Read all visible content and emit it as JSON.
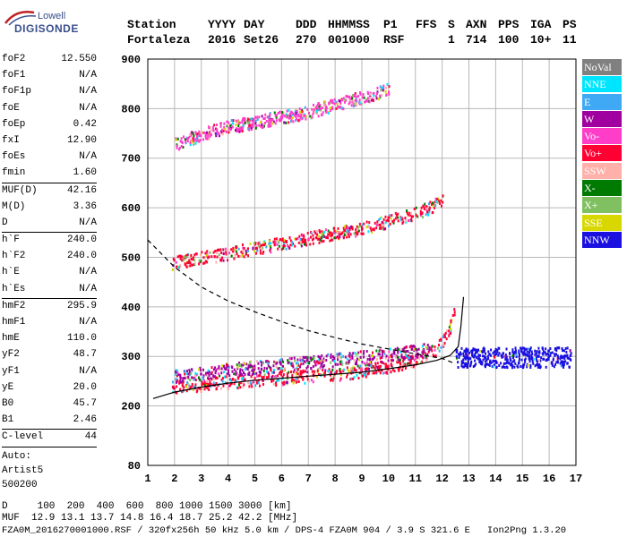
{
  "logo": {
    "line1": "Lowell",
    "line2": "DIGISONDE"
  },
  "header": {
    "labels": [
      "Station",
      "YYYY",
      "DAY",
      "DDD",
      "HHMMSS",
      "P1",
      "FFS",
      "S",
      "AXN",
      "PPS",
      "IGA",
      "PS"
    ],
    "values": [
      "Fortaleza",
      "2016",
      "Set26",
      "270",
      "001000",
      "RSF",
      "1",
      "714",
      "100",
      "10+",
      "11"
    ]
  },
  "params": {
    "group1": [
      {
        "label": "foF2",
        "value": "12.550"
      },
      {
        "label": "foF1",
        "value": "N/A"
      },
      {
        "label": "foF1p",
        "value": "N/A"
      },
      {
        "label": "foE",
        "value": "N/A"
      },
      {
        "label": "foEp",
        "value": "0.42"
      },
      {
        "label": "fxI",
        "value": "12.90"
      },
      {
        "label": "foEs",
        "value": "N/A"
      },
      {
        "label": "fmin",
        "value": "1.60"
      }
    ],
    "group2": [
      {
        "label": "MUF(D)",
        "value": "42.16"
      },
      {
        "label": "M(D)",
        "value": "3.36"
      },
      {
        "label": "D",
        "value": "N/A"
      }
    ],
    "group3": [
      {
        "label": "h`F",
        "value": "240.0"
      },
      {
        "label": "h`F2",
        "value": "240.0"
      },
      {
        "label": "h`E",
        "value": "N/A"
      },
      {
        "label": "h`Es",
        "value": "N/A"
      }
    ],
    "group4": [
      {
        "label": "hmF2",
        "value": "295.9"
      },
      {
        "label": "hmF1",
        "value": "N/A"
      },
      {
        "label": "hmE",
        "value": "110.0"
      },
      {
        "label": "yF2",
        "value": "48.7"
      },
      {
        "label": "yF1",
        "value": "N/A"
      },
      {
        "label": "yE",
        "value": "20.0"
      },
      {
        "label": "B0",
        "value": "45.7"
      },
      {
        "label": "B1",
        "value": "2.46"
      }
    ],
    "clevel": {
      "label": "C-level",
      "value": "44"
    },
    "auto": [
      "Auto:",
      "Artist5",
      "500200"
    ]
  },
  "legend": [
    {
      "label": "NoVal",
      "color": "#808080"
    },
    {
      "label": "NNE",
      "color": "#00e5ff"
    },
    {
      "label": "E",
      "color": "#3fa9f5"
    },
    {
      "label": "W",
      "color": "#a000a0"
    },
    {
      "label": "Vo-",
      "color": "#ff3dc8"
    },
    {
      "label": "Vo+",
      "color": "#ff0033"
    },
    {
      "label": "SSW",
      "color": "#ffb0a8"
    },
    {
      "label": "X-",
      "color": "#007a00"
    },
    {
      "label": "X+",
      "color": "#80c060"
    },
    {
      "label": "SSE",
      "color": "#d8d800"
    },
    {
      "label": "NNW",
      "color": "#1a10e0"
    }
  ],
  "footer": {
    "d_line": "D     100  200  400  600  800 1000 1500 3000 [km]",
    "muf_line": "MUF  12.9 13.1 13.7 14.8 16.4 18.7 25.2 42.2 [MHz]",
    "file_line": "FZA0M_2016270001000.RSF / 320fx256h 50 kHz 5.0 km / DPS-4 FZA0M 904 / 3.9 S 321.6 E   Ion2Png 1.3.20"
  },
  "chart_data": {
    "type": "scatter",
    "xlim": [
      1,
      17
    ],
    "ylim": [
      80,
      900
    ],
    "xticks": [
      1,
      2,
      3,
      4,
      5,
      6,
      7,
      8,
      9,
      10,
      11,
      12,
      13,
      14,
      15,
      16,
      17
    ],
    "yticks": [
      80,
      200,
      300,
      400,
      500,
      600,
      700,
      800,
      900
    ],
    "grid": true,
    "series": [
      {
        "name": "O-trace F2",
        "color": "#ff0033",
        "points": [
          [
            1.9,
            240
          ],
          [
            3,
            245
          ],
          [
            4,
            250
          ],
          [
            5,
            255
          ],
          [
            6,
            258
          ],
          [
            7,
            262
          ],
          [
            8,
            266
          ],
          [
            9,
            272
          ],
          [
            10,
            282
          ],
          [
            11,
            295
          ],
          [
            11.7,
            315
          ],
          [
            12.2,
            345
          ],
          [
            12.5,
            400
          ]
        ]
      },
      {
        "name": "X-trace F2",
        "color": "#a000a0",
        "points": [
          [
            2,
            262
          ],
          [
            3,
            268
          ],
          [
            4,
            275
          ],
          [
            5,
            280
          ],
          [
            6,
            284
          ],
          [
            7,
            290
          ],
          [
            8,
            295
          ],
          [
            9,
            300
          ],
          [
            10,
            305
          ],
          [
            11,
            312
          ],
          [
            11.5,
            320
          ]
        ]
      },
      {
        "name": "2nd hop",
        "color": "#ff0033",
        "points": [
          [
            1.9,
            490
          ],
          [
            3,
            500
          ],
          [
            4,
            510
          ],
          [
            5,
            520
          ],
          [
            6,
            530
          ],
          [
            7,
            540
          ],
          [
            8,
            550
          ],
          [
            9,
            560
          ],
          [
            10,
            575
          ],
          [
            11,
            590
          ],
          [
            12,
            615
          ]
        ]
      },
      {
        "name": "3rd hop",
        "color": "#ff3dc8",
        "points": [
          [
            2,
            730
          ],
          [
            3,
            750
          ],
          [
            4,
            765
          ],
          [
            5,
            775
          ],
          [
            6,
            785
          ],
          [
            7,
            795
          ],
          [
            8,
            810
          ],
          [
            9,
            825
          ],
          [
            10,
            840
          ]
        ]
      },
      {
        "name": "NNW spread",
        "color": "#1a10e0",
        "points": [
          [
            12.5,
            300
          ],
          [
            13.5,
            300
          ],
          [
            14.5,
            300
          ],
          [
            15.5,
            300
          ],
          [
            16.8,
            300
          ]
        ]
      }
    ],
    "profile_solid": [
      [
        1.2,
        215
      ],
      [
        2,
        228
      ],
      [
        3,
        238
      ],
      [
        4,
        246
      ],
      [
        5,
        252
      ],
      [
        6,
        256
      ],
      [
        7,
        260
      ],
      [
        8,
        264
      ],
      [
        9,
        268
      ],
      [
        10,
        275
      ],
      [
        11,
        283
      ],
      [
        11.8,
        292
      ],
      [
        12.3,
        302
      ],
      [
        12.6,
        320
      ],
      [
        12.7,
        360
      ],
      [
        12.8,
        420
      ]
    ],
    "profile_dashed": [
      [
        1,
        535
      ],
      [
        2,
        480
      ],
      [
        3,
        440
      ],
      [
        4,
        412
      ],
      [
        5,
        390
      ],
      [
        6,
        370
      ],
      [
        7,
        352
      ],
      [
        8,
        338
      ],
      [
        9,
        325
      ],
      [
        10,
        315
      ],
      [
        11,
        305
      ],
      [
        12,
        296
      ],
      [
        12.5,
        285
      ]
    ]
  }
}
